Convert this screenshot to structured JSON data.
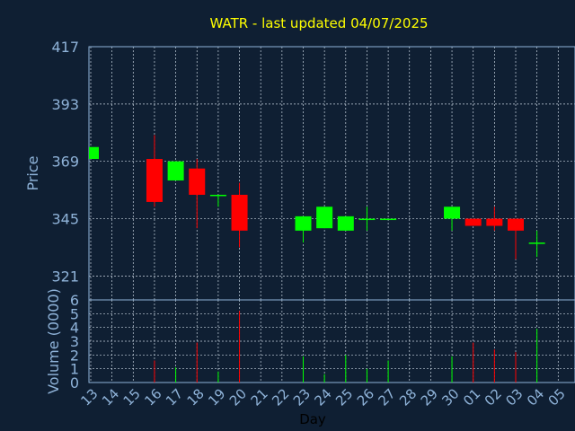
{
  "chart_data": [
    {
      "type": "candlestick",
      "title": "WATR - last updated 04/07/2025",
      "xlabel": "Day",
      "ylabel": "Price",
      "ylim": [
        311,
        417
      ],
      "y_ticks": [
        "321",
        "345",
        "369",
        "393",
        "417"
      ],
      "grid": true,
      "x": [
        "13",
        "14",
        "15",
        "16",
        "17",
        "18",
        "19",
        "20",
        "21",
        "22",
        "23",
        "24",
        "25",
        "26",
        "27",
        "28",
        "29",
        "30",
        "01",
        "02",
        "03",
        "04",
        "05"
      ],
      "candles": [
        {
          "x": "13",
          "open": 370,
          "close": 375,
          "high": 375,
          "low": 370
        },
        {
          "x": "16",
          "open": 370,
          "close": 352,
          "high": 380,
          "low": 350
        },
        {
          "x": "17",
          "open": 361,
          "close": 369,
          "high": 369,
          "low": 361
        },
        {
          "x": "18",
          "open": 366,
          "close": 355,
          "high": 370,
          "low": 341
        },
        {
          "x": "19",
          "open": 355,
          "close": 355,
          "high": 355,
          "low": 350
        },
        {
          "x": "20",
          "open": 355,
          "close": 340,
          "high": 360,
          "low": 333
        },
        {
          "x": "23",
          "open": 340,
          "close": 346,
          "high": 346,
          "low": 335
        },
        {
          "x": "24",
          "open": 341,
          "close": 350,
          "high": 350,
          "low": 341
        },
        {
          "x": "25",
          "open": 340,
          "close": 346,
          "high": 346,
          "low": 340
        },
        {
          "x": "26",
          "open": 345,
          "close": 345,
          "high": 350,
          "low": 340
        },
        {
          "x": "27",
          "open": 345,
          "close": 345,
          "high": 345,
          "low": 345
        },
        {
          "x": "30",
          "open": 345,
          "close": 350,
          "high": 350,
          "low": 340
        },
        {
          "x": "01",
          "open": 345,
          "close": 342,
          "high": 345,
          "low": 342
        },
        {
          "x": "02",
          "open": 345,
          "close": 342,
          "high": 350,
          "low": 340
        },
        {
          "x": "03",
          "open": 345,
          "close": 340,
          "high": 345,
          "low": 328
        },
        {
          "x": "04",
          "open": 335,
          "close": 335,
          "high": 340,
          "low": 329
        }
      ]
    },
    {
      "type": "bar",
      "xlabel": "Day",
      "ylabel": "Volume (0000)",
      "ylim": [
        0,
        6
      ],
      "y_ticks": [
        "0",
        "1",
        "2",
        "3",
        "4",
        "5",
        "6"
      ],
      "grid": true,
      "categories": [
        "13",
        "14",
        "15",
        "16",
        "17",
        "18",
        "19",
        "20",
        "21",
        "22",
        "23",
        "24",
        "25",
        "26",
        "27",
        "28",
        "29",
        "30",
        "01",
        "02",
        "03",
        "04",
        "05"
      ],
      "bars": [
        {
          "x": "16",
          "value": 1.6,
          "color": "#ff0000"
        },
        {
          "x": "17",
          "value": 1.1,
          "color": "#00ff00"
        },
        {
          "x": "18",
          "value": 2.9,
          "color": "#ff0000"
        },
        {
          "x": "19",
          "value": 0.8,
          "color": "#00ff00"
        },
        {
          "x": "20",
          "value": 5.2,
          "color": "#ff0000"
        },
        {
          "x": "23",
          "value": 1.9,
          "color": "#00ff00"
        },
        {
          "x": "24",
          "value": 0.6,
          "color": "#00ff00"
        },
        {
          "x": "25",
          "value": 2.0,
          "color": "#00ff00"
        },
        {
          "x": "26",
          "value": 1.0,
          "color": "#00ff00"
        },
        {
          "x": "27",
          "value": 1.6,
          "color": "#00ff00"
        },
        {
          "x": "30",
          "value": 1.9,
          "color": "#00ff00"
        },
        {
          "x": "01",
          "value": 2.9,
          "color": "#ff0000"
        },
        {
          "x": "02",
          "value": 2.4,
          "color": "#ff0000"
        },
        {
          "x": "03",
          "value": 2.2,
          "color": "#ff0000"
        },
        {
          "x": "04",
          "value": 3.9,
          "color": "#00ff00"
        }
      ]
    }
  ],
  "colors": {
    "background": "#0f1f33",
    "frame": "#8fb3d9",
    "grid": "#c8d4e0",
    "title": "#ffff00",
    "axis_text": "#8fb3d9",
    "xlabel_text": "#000000",
    "up": "#00ff00",
    "down": "#ff0000"
  }
}
